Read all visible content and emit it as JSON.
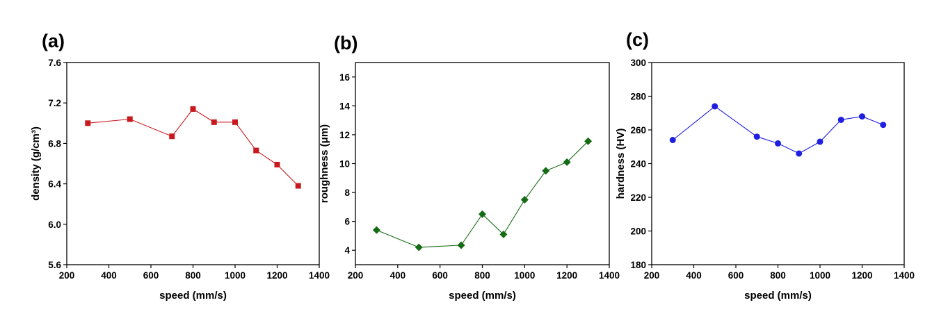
{
  "chart_data": [
    {
      "type": "line",
      "panel_label": "(a)",
      "xlabel": "speed (mm/s)",
      "ylabel": "density (g/cm³)",
      "xlim": [
        200,
        1400
      ],
      "ylim": [
        5.6,
        7.6
      ],
      "xticks": [
        200,
        400,
        600,
        800,
        1000,
        1200,
        1400
      ],
      "yticks": [
        5.6,
        6.0,
        6.4,
        6.8,
        7.2,
        7.6
      ],
      "ytick_labels": [
        "5.6",
        "6.0",
        "6.4",
        "6.8",
        "7.2",
        "7.6"
      ],
      "marker": "square",
      "color": "#c8191f",
      "series": [
        {
          "name": "density",
          "x": [
            300,
            500,
            700,
            800,
            900,
            1000,
            1100,
            1200,
            1300
          ],
          "values": [
            7.0,
            7.04,
            6.87,
            7.14,
            7.01,
            7.01,
            6.73,
            6.59,
            6.38
          ]
        }
      ]
    },
    {
      "type": "line",
      "panel_label": "(b)",
      "xlabel": "speed (mm/s)",
      "ylabel": "roughness (μm)",
      "xlim": [
        200,
        1400
      ],
      "ylim": [
        3,
        17
      ],
      "xticks": [
        200,
        400,
        600,
        800,
        1000,
        1200,
        1400
      ],
      "yticks": [
        4,
        6,
        8,
        10,
        12,
        14,
        16
      ],
      "ytick_labels": [
        "4",
        "6",
        "8",
        "10",
        "12",
        "14",
        "16"
      ],
      "marker": "diamond",
      "color": "#136b13",
      "series": [
        {
          "name": "roughness",
          "x": [
            300,
            500,
            700,
            800,
            900,
            1000,
            1100,
            1200,
            1300
          ],
          "values": [
            5.4,
            4.2,
            4.35,
            6.5,
            5.1,
            7.5,
            9.5,
            10.1,
            11.55
          ]
        }
      ]
    },
    {
      "type": "line",
      "panel_label": "(c)",
      "xlabel": "speed (mm/s)",
      "ylabel": "hardness (HV)",
      "xlim": [
        200,
        1400
      ],
      "ylim": [
        180,
        300
      ],
      "xticks": [
        200,
        400,
        600,
        800,
        1000,
        1200,
        1400
      ],
      "yticks": [
        180,
        200,
        220,
        240,
        260,
        280,
        300
      ],
      "ytick_labels": [
        "180",
        "200",
        "220",
        "240",
        "260",
        "280",
        "300"
      ],
      "marker": "circle",
      "color": "#1f1fe0",
      "series": [
        {
          "name": "hardness",
          "x": [
            300,
            500,
            700,
            800,
            900,
            1000,
            1100,
            1200,
            1300
          ],
          "values": [
            254,
            274,
            256,
            252,
            246,
            253,
            266,
            268,
            263
          ]
        }
      ]
    }
  ]
}
